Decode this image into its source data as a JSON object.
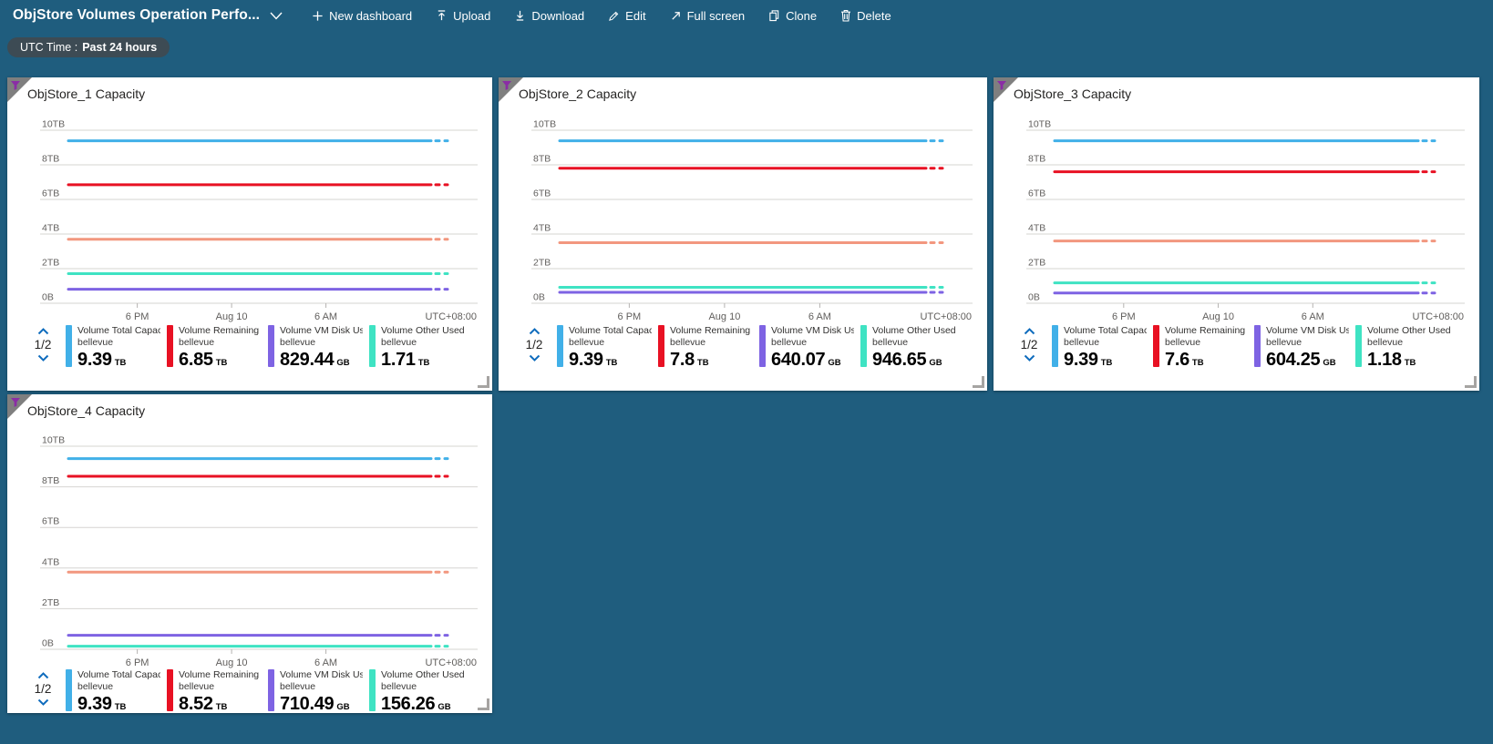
{
  "page": {
    "background": "#1f5d7e"
  },
  "toolbar": {
    "title": "ObjStore Volumes Operation Perfo...",
    "buttons": [
      {
        "label": "New dashboard",
        "icon": "plus-icon"
      },
      {
        "label": "Upload",
        "icon": "upload-icon"
      },
      {
        "label": "Download",
        "icon": "download-icon"
      },
      {
        "label": "Edit",
        "icon": "edit-pencil-icon"
      },
      {
        "label": "Full screen",
        "icon": "fullscreen-icon"
      },
      {
        "label": "Clone",
        "icon": "clone-icon"
      },
      {
        "label": "Delete",
        "icon": "delete-trash-icon"
      }
    ]
  },
  "time_pill": {
    "prefix": "UTC Time :",
    "value": "Past 24 hours"
  },
  "colors": {
    "total": "#41b0e8",
    "remaining": "#e81123",
    "vm_disk": "#7e63e3",
    "other_used": "#3fe3c3",
    "unlabeled_series": "#f2977f",
    "pager_chevron": "#0f6cbd",
    "funnel": "#8a2da5",
    "tile_corner": "#7f7f7f",
    "grid_line": "#d6d4d2",
    "axis_text": "#605e5c"
  },
  "tiles": [
    {
      "title": "ObjStore_1 Capacity",
      "pagination": "1/2",
      "legend": [
        {
          "label": "Volume Total Capacit...",
          "sub": "bellevue",
          "value": "9.39",
          "unit": "TB",
          "color": "#41b0e8"
        },
        {
          "label": "Volume Remaining Cap...",
          "sub": "bellevue",
          "value": "6.85",
          "unit": "TB",
          "color": "#e81123"
        },
        {
          "label": "Volume VM Disk Used ...",
          "sub": "bellevue",
          "value": "829.44",
          "unit": "GB",
          "color": "#7e63e3"
        },
        {
          "label": "Volume Other Used Ca...",
          "sub": "bellevue",
          "value": "1.71",
          "unit": "TB",
          "color": "#3fe3c3"
        }
      ]
    },
    {
      "title": "ObjStore_2 Capacity",
      "pagination": "1/2",
      "legend": [
        {
          "label": "Volume Total Capacit...",
          "sub": "bellevue",
          "value": "9.39",
          "unit": "TB",
          "color": "#41b0e8"
        },
        {
          "label": "Volume Remaining Cap...",
          "sub": "bellevue",
          "value": "7.8",
          "unit": "TB",
          "color": "#e81123"
        },
        {
          "label": "Volume VM Disk Used ...",
          "sub": "bellevue",
          "value": "640.07",
          "unit": "GB",
          "color": "#7e63e3"
        },
        {
          "label": "Volume Other Used Ca...",
          "sub": "bellevue",
          "value": "946.65",
          "unit": "GB",
          "color": "#3fe3c3"
        }
      ]
    },
    {
      "title": "ObjStore_3 Capacity",
      "pagination": "1/2",
      "legend": [
        {
          "label": "Volume Total Capacit...",
          "sub": "bellevue",
          "value": "9.39",
          "unit": "TB",
          "color": "#41b0e8"
        },
        {
          "label": "Volume Remaining Cap...",
          "sub": "bellevue",
          "value": "7.6",
          "unit": "TB",
          "color": "#e81123"
        },
        {
          "label": "Volume VM Disk Used ...",
          "sub": "bellevue",
          "value": "604.25",
          "unit": "GB",
          "color": "#7e63e3"
        },
        {
          "label": "Volume Other Used Ca...",
          "sub": "bellevue",
          "value": "1.18",
          "unit": "TB",
          "color": "#3fe3c3"
        }
      ]
    },
    {
      "title": "ObjStore_4 Capacity",
      "pagination": "1/2",
      "legend": [
        {
          "label": "Volume Total Capacit...",
          "sub": "bellevue",
          "value": "9.39",
          "unit": "TB",
          "color": "#41b0e8"
        },
        {
          "label": "Volume Remaining Cap...",
          "sub": "bellevue",
          "value": "8.52",
          "unit": "TB",
          "color": "#e81123"
        },
        {
          "label": "Volume VM Disk Used ...",
          "sub": "bellevue",
          "value": "710.49",
          "unit": "GB",
          "color": "#7e63e3"
        },
        {
          "label": "Volume Other Used Ca...",
          "sub": "bellevue",
          "value": "156.26",
          "unit": "GB",
          "color": "#3fe3c3"
        }
      ]
    }
  ],
  "chart_data": [
    {
      "type": "line",
      "title": "ObjStore_1 Capacity",
      "x_ticks": [
        "6 PM",
        "Aug 10",
        "6 AM"
      ],
      "x_right_label": "UTC+08:00",
      "y_tick_labels": [
        "0B",
        "2TB",
        "4TB",
        "6TB",
        "8TB",
        "10TB"
      ],
      "ylim": [
        0,
        10
      ],
      "y_unit": "TB",
      "grid": true,
      "series": [
        {
          "name": "Volume Total Capacit... (bellevue)",
          "value_tb": 9.39,
          "color": "#41b0e8"
        },
        {
          "name": "Volume Remaining Cap... (bellevue)",
          "value_tb": 6.85,
          "color": "#e81123"
        },
        {
          "name": "unlabeled series (legend page 2/2)",
          "value_tb": 3.7,
          "color": "#f2977f"
        },
        {
          "name": "Volume Other Used Ca... (bellevue)",
          "value_tb": 1.71,
          "color": "#3fe3c3"
        },
        {
          "name": "Volume VM Disk Used ... (bellevue)",
          "value_tb": 0.81,
          "color": "#7e63e3"
        }
      ]
    },
    {
      "type": "line",
      "title": "ObjStore_2 Capacity",
      "x_ticks": [
        "6 PM",
        "Aug 10",
        "6 AM"
      ],
      "x_right_label": "UTC+08:00",
      "y_tick_labels": [
        "0B",
        "2TB",
        "4TB",
        "6TB",
        "8TB",
        "10TB"
      ],
      "ylim": [
        0,
        10
      ],
      "y_unit": "TB",
      "grid": true,
      "series": [
        {
          "name": "Volume Total Capacit... (bellevue)",
          "value_tb": 9.39,
          "color": "#41b0e8"
        },
        {
          "name": "Volume Remaining Cap... (bellevue)",
          "value_tb": 7.8,
          "color": "#e81123"
        },
        {
          "name": "unlabeled series (legend page 2/2)",
          "value_tb": 3.5,
          "color": "#f2977f"
        },
        {
          "name": "Volume Other Used Ca... (bellevue)",
          "value_tb": 0.92,
          "color": "#3fe3c3"
        },
        {
          "name": "Volume VM Disk Used ... (bellevue)",
          "value_tb": 0.63,
          "color": "#7e63e3"
        }
      ]
    },
    {
      "type": "line",
      "title": "ObjStore_3 Capacity",
      "x_ticks": [
        "6 PM",
        "Aug 10",
        "6 AM"
      ],
      "x_right_label": "UTC+08:00",
      "y_tick_labels": [
        "0B",
        "2TB",
        "4TB",
        "6TB",
        "8TB",
        "10TB"
      ],
      "ylim": [
        0,
        10
      ],
      "y_unit": "TB",
      "grid": true,
      "series": [
        {
          "name": "Volume Total Capacit... (bellevue)",
          "value_tb": 9.39,
          "color": "#41b0e8"
        },
        {
          "name": "Volume Remaining Cap... (bellevue)",
          "value_tb": 7.6,
          "color": "#e81123"
        },
        {
          "name": "unlabeled series (legend page 2/2)",
          "value_tb": 3.6,
          "color": "#f2977f"
        },
        {
          "name": "Volume Other Used Ca... (bellevue)",
          "value_tb": 1.18,
          "color": "#3fe3c3"
        },
        {
          "name": "Volume VM Disk Used ... (bellevue)",
          "value_tb": 0.59,
          "color": "#7e63e3"
        }
      ]
    },
    {
      "type": "line",
      "title": "ObjStore_4 Capacity",
      "x_ticks": [
        "6 PM",
        "Aug 10",
        "6 AM"
      ],
      "x_right_label": "UTC+08:00",
      "y_tick_labels": [
        "0B",
        "2TB",
        "4TB",
        "6TB",
        "8TB",
        "10TB"
      ],
      "ylim": [
        0,
        10
      ],
      "y_unit": "TB",
      "grid": true,
      "series": [
        {
          "name": "Volume Total Capacit... (bellevue)",
          "value_tb": 9.39,
          "color": "#41b0e8"
        },
        {
          "name": "Volume Remaining Cap... (bellevue)",
          "value_tb": 8.52,
          "color": "#e81123"
        },
        {
          "name": "unlabeled series (legend page 2/2)",
          "value_tb": 3.8,
          "color": "#f2977f"
        },
        {
          "name": "Volume VM Disk Used ... (bellevue)",
          "value_tb": 0.69,
          "color": "#7e63e3"
        },
        {
          "name": "Volume Other Used Ca... (bellevue)",
          "value_tb": 0.15,
          "color": "#3fe3c3"
        }
      ]
    }
  ]
}
